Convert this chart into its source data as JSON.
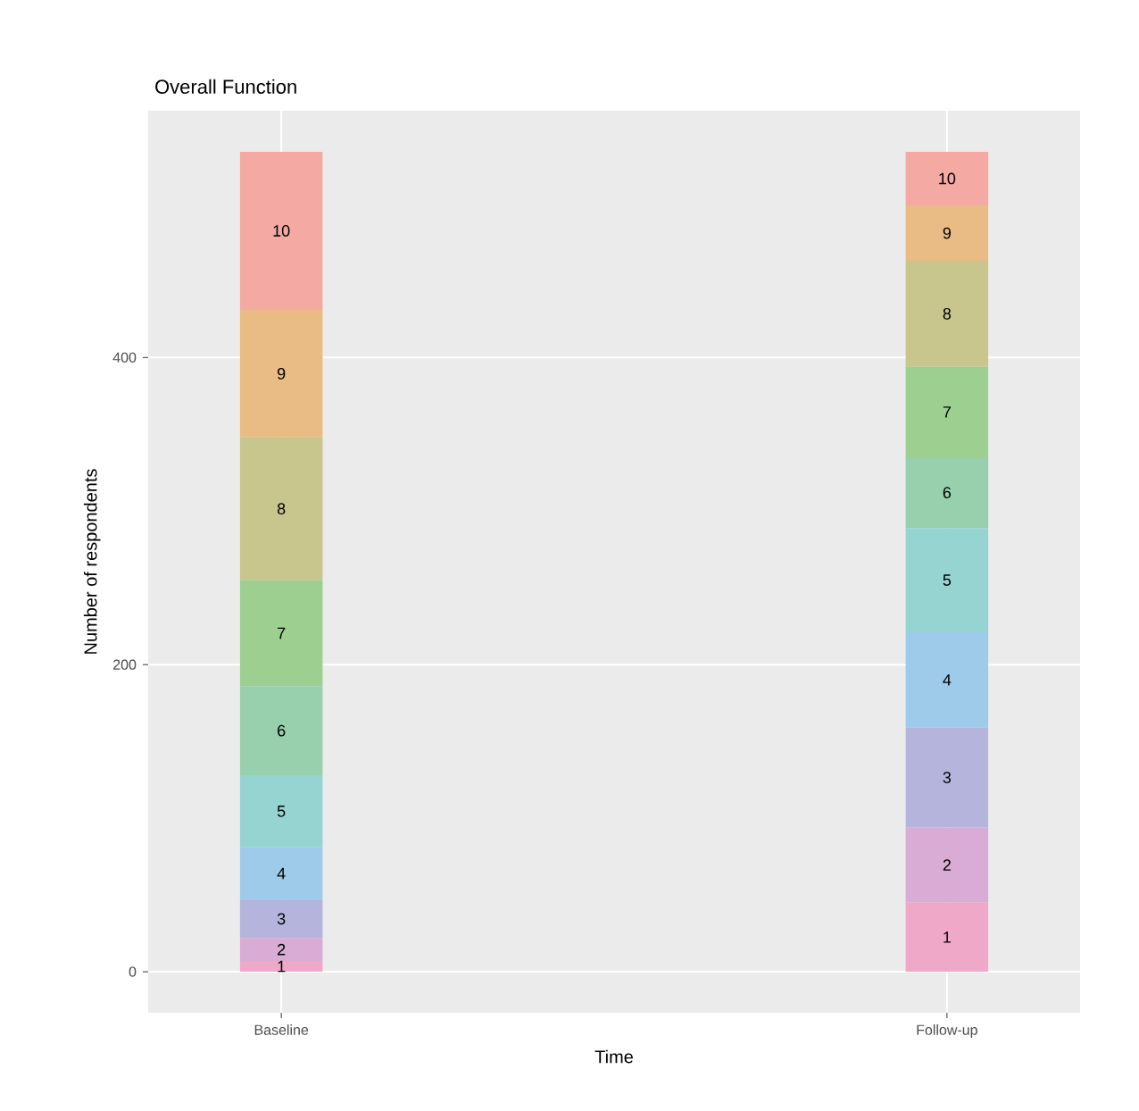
{
  "chart_data": {
    "type": "bar",
    "stacked": true,
    "title": "Overall Function",
    "xlabel": "Time",
    "ylabel": "Number of respondents",
    "categories": [
      "Baseline",
      "Follow-up"
    ],
    "series": [
      {
        "name": "1",
        "color": "#f0a8c8",
        "values": [
          7,
          45
        ]
      },
      {
        "name": "2",
        "color": "#d8acd4",
        "values": [
          15,
          49
        ]
      },
      {
        "name": "3",
        "color": "#b4b4dc",
        "values": [
          25,
          65
        ]
      },
      {
        "name": "4",
        "color": "#9ecbea",
        "values": [
          34,
          62
        ]
      },
      {
        "name": "5",
        "color": "#96d4d2",
        "values": [
          47,
          68
        ]
      },
      {
        "name": "6",
        "color": "#98cfac",
        "values": [
          58,
          46
        ]
      },
      {
        "name": "7",
        "color": "#9ccf90",
        "values": [
          69,
          59
        ]
      },
      {
        "name": "8",
        "color": "#c8c68c",
        "values": [
          93,
          69
        ]
      },
      {
        "name": "9",
        "color": "#e8bc84",
        "values": [
          83,
          36
        ]
      },
      {
        "name": "10",
        "color": "#f4a9a2",
        "values": [
          103,
          35
        ]
      }
    ],
    "ylim": [
      -26.7,
      560.7
    ],
    "yticks": [
      0,
      200,
      400
    ],
    "grid": true,
    "legend": false
  }
}
